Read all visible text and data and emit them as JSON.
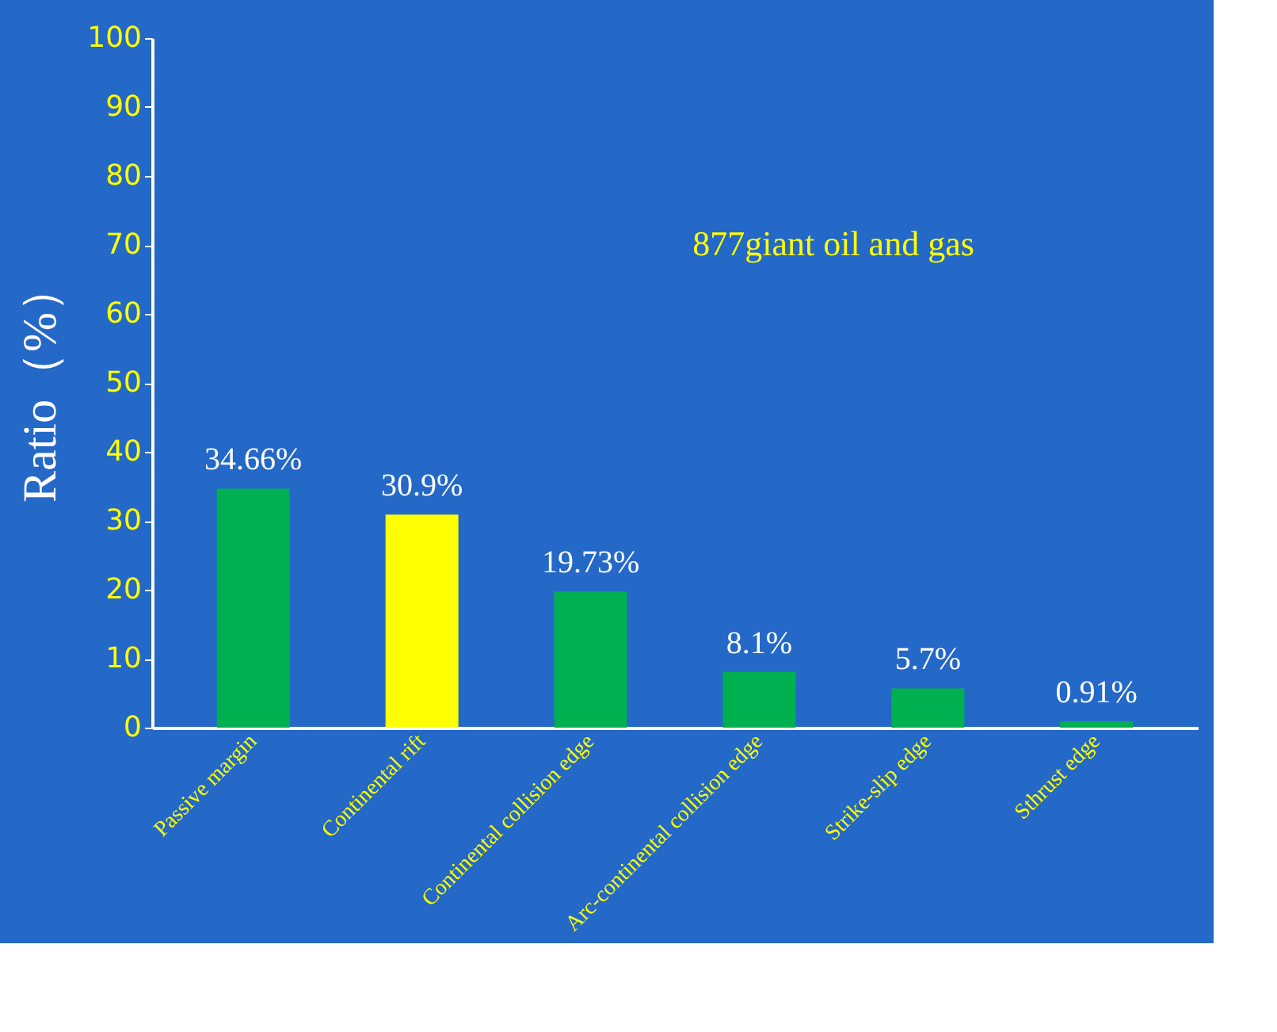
{
  "chart_data": {
    "type": "bar",
    "ylabel": "Ratio（%）",
    "categories": [
      "Passive margin",
      "Continental rift",
      "Continental collision edge",
      "Arc-continental collision edge",
      "Strike-slip edge",
      "Sthrust edge"
    ],
    "values": [
      34.66,
      30.9,
      19.73,
      8.1,
      5.7,
      0.91
    ],
    "colors": [
      "#00b050",
      "#ffff00",
      "#00b050",
      "#00b050",
      "#00b050",
      "#00b050"
    ],
    "value_labels": [
      "34.66%",
      "30.9%",
      "19.73%",
      "8.1%",
      "5.7%",
      "0.91%"
    ],
    "ylim": [
      0,
      100
    ],
    "yticks": [
      0,
      10,
      20,
      30,
      40,
      50,
      60,
      70,
      80,
      90,
      100
    ],
    "grid": false,
    "legend": false,
    "annotations": [
      "877giant  oil and gas"
    ]
  }
}
